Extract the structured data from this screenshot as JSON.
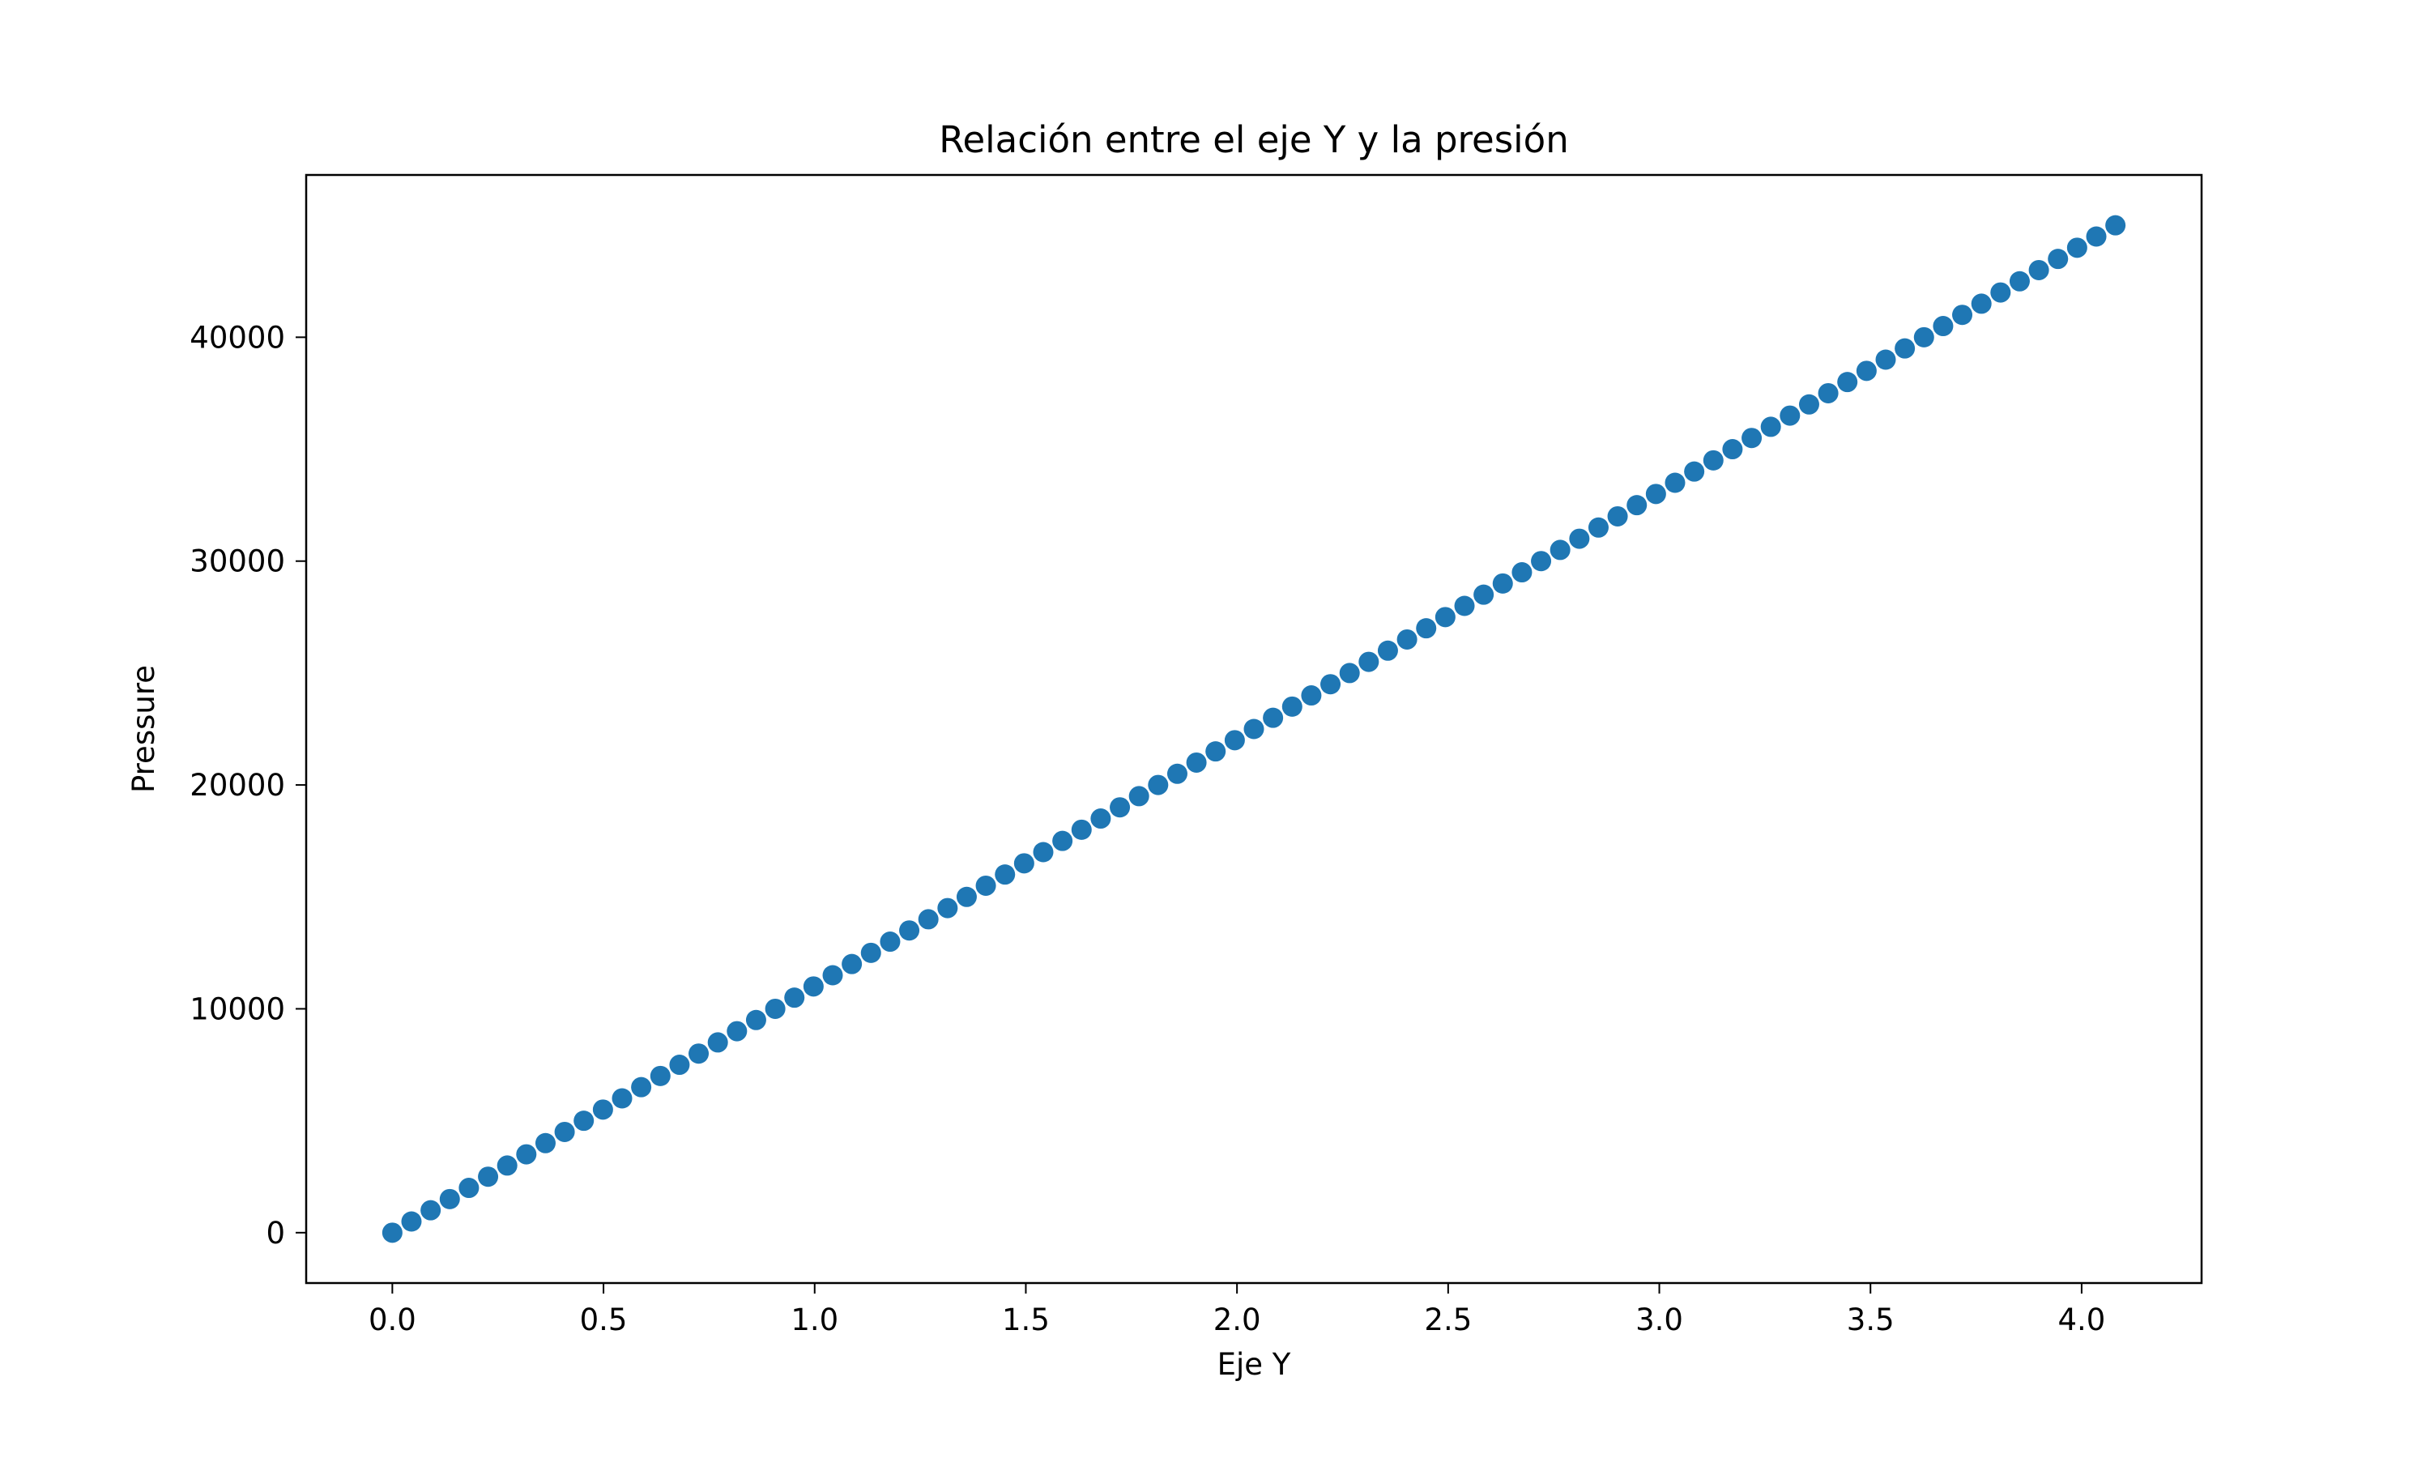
{
  "chart_data": {
    "type": "scatter",
    "title": "Relación entre el eje Y y la presión",
    "xlabel": "Eje Y",
    "ylabel": "Pressure",
    "xlim": [
      -0.204,
      4.284
    ],
    "ylim": [
      -2250,
      47250
    ],
    "xticks": [
      0.0,
      0.5,
      1.0,
      1.5,
      2.0,
      2.5,
      3.0,
      3.5,
      4.0
    ],
    "xtick_labels": [
      "0.0",
      "0.5",
      "1.0",
      "1.5",
      "2.0",
      "2.5",
      "3.0",
      "3.5",
      "4.0"
    ],
    "yticks": [
      0,
      10000,
      20000,
      30000,
      40000
    ],
    "ytick_labels": [
      "0",
      "10000",
      "20000",
      "30000",
      "40000"
    ],
    "grid": false,
    "legend": "none",
    "marker_color": "#1f77b4",
    "series": [
      {
        "x": [
          0.0,
          0.0453,
          0.0907,
          0.136,
          0.1813,
          0.2267,
          0.272,
          0.3173,
          0.3627,
          0.408,
          0.4533,
          0.4987,
          0.544,
          0.5893,
          0.6347,
          0.68,
          0.7253,
          0.7707,
          0.816,
          0.8613,
          0.9067,
          0.952,
          0.9973,
          1.0427,
          1.088,
          1.1333,
          1.1787,
          1.224,
          1.2693,
          1.3147,
          1.36,
          1.4053,
          1.4507,
          1.496,
          1.5413,
          1.5867,
          1.632,
          1.6773,
          1.7227,
          1.768,
          1.8133,
          1.8587,
          1.904,
          1.9493,
          1.9947,
          2.04,
          2.0853,
          2.1307,
          2.176,
          2.2213,
          2.2667,
          2.312,
          2.3573,
          2.4027,
          2.448,
          2.4933,
          2.5387,
          2.584,
          2.6293,
          2.6747,
          2.72,
          2.7653,
          2.8107,
          2.856,
          2.9013,
          2.9467,
          2.992,
          3.0373,
          3.0827,
          3.128,
          3.1733,
          3.2187,
          3.264,
          3.3093,
          3.3547,
          3.4,
          3.4453,
          3.4907,
          3.536,
          3.5813,
          3.6267,
          3.672,
          3.7173,
          3.7627,
          3.808,
          3.8533,
          3.8987,
          3.944,
          3.9893,
          4.0347,
          4.08
        ],
        "y": [
          0,
          500,
          1000,
          1500,
          2000,
          2500,
          3000,
          3500,
          4000,
          4500,
          5000,
          5500,
          6000,
          6500,
          7000,
          7500,
          8000,
          8500,
          9000,
          9500,
          10000,
          10500,
          11000,
          11500,
          12000,
          12500,
          13000,
          13500,
          14000,
          14500,
          15000,
          15500,
          16000,
          16500,
          17000,
          17500,
          18000,
          18500,
          19000,
          19500,
          20000,
          20500,
          21000,
          21500,
          22000,
          22500,
          23000,
          23500,
          24000,
          24500,
          25000,
          25500,
          26000,
          26500,
          27000,
          27500,
          28000,
          28500,
          29000,
          29500,
          30000,
          30500,
          31000,
          31500,
          32000,
          32500,
          33000,
          33500,
          34000,
          34500,
          35000,
          35500,
          36000,
          36500,
          37000,
          37500,
          38000,
          38500,
          39000,
          39500,
          40000,
          40500,
          41000,
          41500,
          42000,
          42500,
          43000,
          43500,
          44000,
          44500,
          45000
        ]
      }
    ]
  }
}
